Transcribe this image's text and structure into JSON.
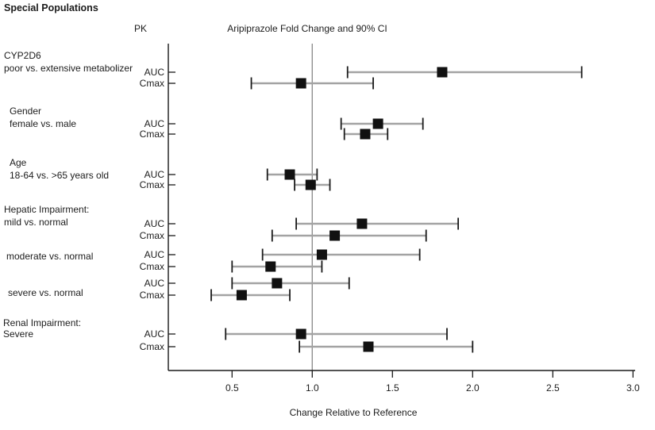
{
  "chart_data": {
    "type": "forest",
    "title": "Special Populations",
    "pk_header": "PK",
    "ci_header": "Aripiprazole Fold Change and 90% CI",
    "xlabel": "Change Relative to Reference",
    "x_ticks": [
      "0.5",
      "1.0",
      "1.5",
      "2.0",
      "2.5",
      "3.0"
    ],
    "xlim": [
      0.1,
      3.05
    ],
    "reference_line": 1.0,
    "grid": false,
    "marker_color": "#111111",
    "ci_line_color": "#a3a3a3",
    "cap_color": "#1a1a1a",
    "axis_color": "#1a1a1a",
    "reference_line_color": "#8f8f8f",
    "groups": [
      {
        "label_lines": [
          "CYP2D6",
          "poor vs. extensive metabolizer"
        ],
        "rows": [
          {
            "pk": "AUC",
            "estimate": 1.81,
            "ci_low": 1.22,
            "ci_high": 2.68
          },
          {
            "pk": "Cmax",
            "estimate": 0.93,
            "ci_low": 0.62,
            "ci_high": 1.38
          }
        ]
      },
      {
        "label_lines": [
          "Gender",
          "female vs. male"
        ],
        "rows": [
          {
            "pk": "AUC",
            "estimate": 1.41,
            "ci_low": 1.18,
            "ci_high": 1.69
          },
          {
            "pk": "Cmax",
            "estimate": 1.33,
            "ci_low": 1.2,
            "ci_high": 1.47
          }
        ]
      },
      {
        "label_lines": [
          "Age",
          "18-64 vs. >65 years old"
        ],
        "rows": [
          {
            "pk": "AUC",
            "estimate": 0.86,
            "ci_low": 0.72,
            "ci_high": 1.03
          },
          {
            "pk": "Cmax",
            "estimate": 0.99,
            "ci_low": 0.89,
            "ci_high": 1.11
          }
        ]
      },
      {
        "label_lines": [
          "Hepatic Impairment:",
          "mild vs. normal"
        ],
        "rows": [
          {
            "pk": "AUC",
            "estimate": 1.31,
            "ci_low": 0.9,
            "ci_high": 1.91
          },
          {
            "pk": "Cmax",
            "estimate": 1.14,
            "ci_low": 0.75,
            "ci_high": 1.71
          }
        ]
      },
      {
        "label_lines": [
          "moderate vs. normal"
        ],
        "rows": [
          {
            "pk": "AUC",
            "estimate": 1.06,
            "ci_low": 0.69,
            "ci_high": 1.67
          },
          {
            "pk": "Cmax",
            "estimate": 0.74,
            "ci_low": 0.5,
            "ci_high": 1.06
          }
        ]
      },
      {
        "label_lines": [
          "severe vs. normal"
        ],
        "rows": [
          {
            "pk": "AUC",
            "estimate": 0.78,
            "ci_low": 0.5,
            "ci_high": 1.23
          },
          {
            "pk": "Cmax",
            "estimate": 0.56,
            "ci_low": 0.37,
            "ci_high": 0.86
          }
        ]
      },
      {
        "label_lines": [
          "Renal Impairment:",
          "Severe"
        ],
        "rows": [
          {
            "pk": "AUC",
            "estimate": 0.93,
            "ci_low": 0.46,
            "ci_high": 1.84
          },
          {
            "pk": "Cmax",
            "estimate": 1.35,
            "ci_low": 0.92,
            "ci_high": 2.0
          }
        ]
      }
    ]
  }
}
